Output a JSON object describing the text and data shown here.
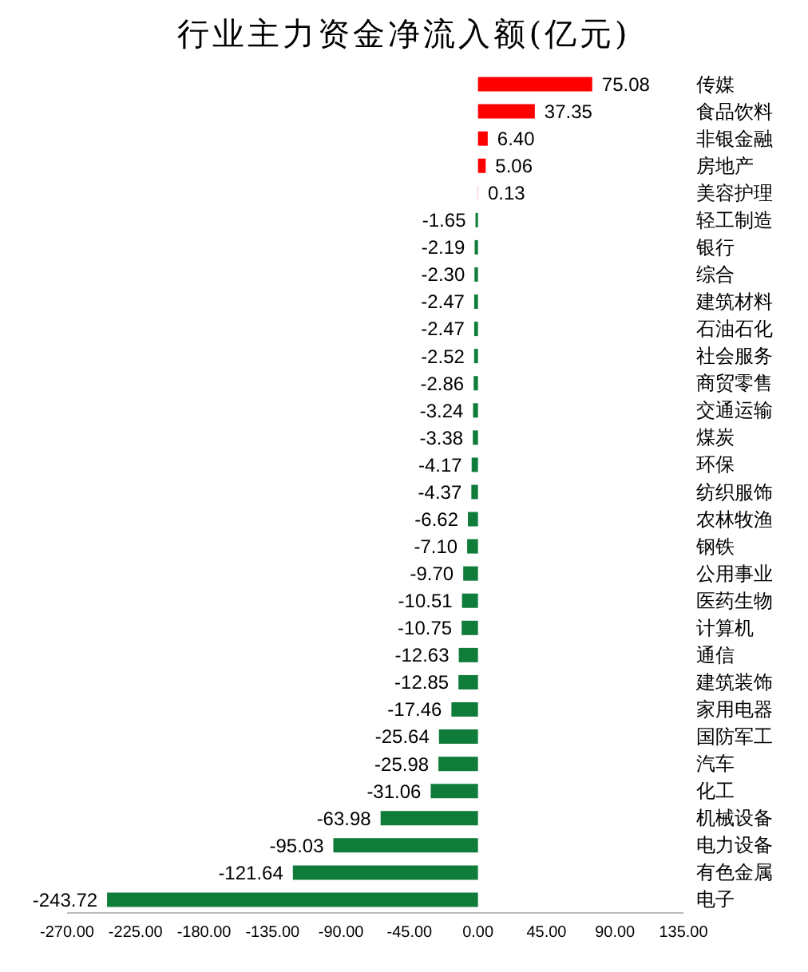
{
  "chart_data": {
    "type": "bar",
    "orientation": "horizontal",
    "title": "行业主力资金净流入额(亿元)",
    "categories": [
      "传媒",
      "食品饮料",
      "非银金融",
      "房地产",
      "美容护理",
      "轻工制造",
      "银行",
      "综合",
      "建筑材料",
      "石油石化",
      "社会服务",
      "商贸零售",
      "交通运输",
      "煤炭",
      "环保",
      "纺织服饰",
      "农林牧渔",
      "钢铁",
      "公用事业",
      "医药生物",
      "计算机",
      "通信",
      "建筑装饰",
      "家用电器",
      "国防军工",
      "汽车",
      "化工",
      "机械设备",
      "电力设备",
      "有色金属",
      "电子"
    ],
    "values": [
      75.08,
      37.35,
      6.4,
      5.06,
      0.13,
      -1.65,
      -2.19,
      -2.3,
      -2.47,
      -2.47,
      -2.52,
      -2.86,
      -3.24,
      -3.38,
      -4.17,
      -4.37,
      -6.62,
      -7.1,
      -9.7,
      -10.51,
      -10.75,
      -12.63,
      -12.85,
      -17.46,
      -25.64,
      -25.98,
      -31.06,
      -63.98,
      -95.03,
      -121.64,
      -243.72
    ],
    "value_labels": [
      "75.08",
      "37.35",
      "6.40",
      "5.06",
      "0.13",
      "-1.65",
      "-2.19",
      "-2.30",
      "-2.47",
      "-2.47",
      "-2.52",
      "-2.86",
      "-3.24",
      "-3.38",
      "-4.17",
      "-4.37",
      "-6.62",
      "-7.10",
      "-9.70",
      "-10.51",
      "-10.75",
      "-12.63",
      "-12.85",
      "-17.46",
      "-25.64",
      "-25.98",
      "-31.06",
      "-63.98",
      "-95.03",
      "-121.64",
      "-243.72"
    ],
    "colors": [
      "#ff0000",
      "#ff0000",
      "#ff0000",
      "#ff0000",
      "#ff0000",
      "#107c3a",
      "#107c3a",
      "#107c3a",
      "#107c3a",
      "#107c3a",
      "#107c3a",
      "#107c3a",
      "#107c3a",
      "#107c3a",
      "#107c3a",
      "#107c3a",
      "#107c3a",
      "#107c3a",
      "#107c3a",
      "#107c3a",
      "#107c3a",
      "#107c3a",
      "#107c3a",
      "#107c3a",
      "#107c3a",
      "#107c3a",
      "#107c3a",
      "#107c3a",
      "#107c3a",
      "#107c3a",
      "#107c3a"
    ],
    "xlim": [
      -270,
      135
    ],
    "xticks": [
      {
        "value": -270,
        "label": "-270.00"
      },
      {
        "value": -225,
        "label": "-225.00"
      },
      {
        "value": -180,
        "label": "-180.00"
      },
      {
        "value": -135,
        "label": "-135.00"
      },
      {
        "value": -90,
        "label": "-90.00"
      },
      {
        "value": -45,
        "label": "-45.00"
      },
      {
        "value": 0,
        "label": "0.00"
      },
      {
        "value": 45,
        "label": "45.00"
      },
      {
        "value": 90,
        "label": "90.00"
      },
      {
        "value": 135,
        "label": "135.00"
      }
    ],
    "grid": false
  }
}
